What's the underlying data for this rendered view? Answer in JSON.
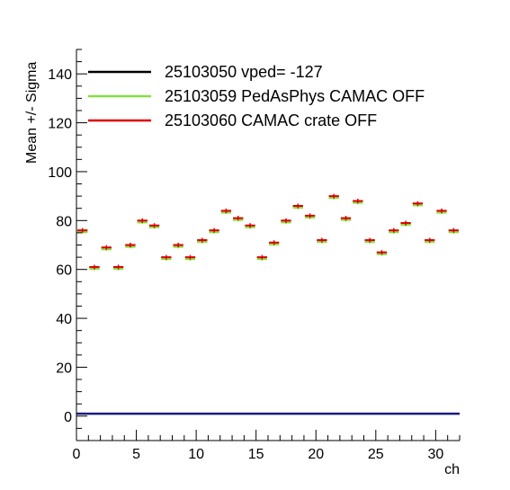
{
  "chart_data": {
    "type": "scatter",
    "xlabel": "ch",
    "ylabel": "Mean +/- Sigma",
    "xlim": [
      0,
      32
    ],
    "ylim": [
      -10,
      150
    ],
    "x_ticks": [
      0,
      5,
      10,
      15,
      20,
      25,
      30
    ],
    "y_ticks": [
      0,
      20,
      40,
      60,
      80,
      100,
      120,
      140
    ],
    "legend_position": "top-left",
    "grid": false,
    "series": [
      {
        "name": "25103050 vped= -127",
        "color": "#000000",
        "x": [
          0.5,
          1.5,
          2.5,
          3.5,
          4.5,
          5.5,
          6.5,
          7.5,
          8.5,
          9.5,
          10.5,
          11.5,
          12.5,
          13.5,
          14.5,
          15.5,
          16.5,
          17.5,
          18.5,
          19.5,
          20.5,
          21.5,
          22.5,
          23.5,
          24.5,
          25.5,
          26.5,
          27.5,
          28.5,
          29.5,
          30.5,
          31.5
        ],
        "values": [
          1,
          1,
          1,
          1,
          1,
          1,
          1,
          1,
          1,
          1,
          1,
          1,
          1,
          1,
          1,
          1,
          1,
          1,
          1,
          1,
          1,
          1,
          1,
          1,
          1,
          1,
          1,
          1,
          1,
          1,
          1,
          1
        ]
      },
      {
        "name": "25103059 PedAsPhys CAMAC OFF",
        "color": "#88dd44",
        "x": [
          0.5,
          1.5,
          2.5,
          3.5,
          4.5,
          5.5,
          6.5,
          7.5,
          8.5,
          9.5,
          10.5,
          11.5,
          12.5,
          13.5,
          14.5,
          15.5,
          16.5,
          17.5,
          18.5,
          19.5,
          20.5,
          21.5,
          22.5,
          23.5,
          24.5,
          25.5,
          26.5,
          27.5,
          28.5,
          29.5,
          30.5,
          31.5
        ],
        "values": [
          75.5,
          60.5,
          68.5,
          60.5,
          69.5,
          79.5,
          77.5,
          64.5,
          69.5,
          64.5,
          71.5,
          75.5,
          83.5,
          80.5,
          77.5,
          64.5,
          70.5,
          79.5,
          85.5,
          81.5,
          71.5,
          89.5,
          80.5,
          87.5,
          71.5,
          66.5,
          75.5,
          78.5,
          86.5,
          71.5,
          83.5,
          75.5
        ]
      },
      {
        "name": "25103060 CAMAC crate OFF",
        "color": "#dd0000",
        "x": [
          0.5,
          1.5,
          2.5,
          3.5,
          4.5,
          5.5,
          6.5,
          7.5,
          8.5,
          9.5,
          10.5,
          11.5,
          12.5,
          13.5,
          14.5,
          15.5,
          16.5,
          17.5,
          18.5,
          19.5,
          20.5,
          21.5,
          22.5,
          23.5,
          24.5,
          25.5,
          26.5,
          27.5,
          28.5,
          29.5,
          30.5,
          31.5
        ],
        "values": [
          76,
          61,
          69,
          61,
          70,
          80,
          78,
          65,
          70,
          65,
          72,
          76,
          84,
          81,
          78,
          65,
          71,
          80,
          86,
          82,
          72,
          90,
          81,
          88,
          72,
          67,
          76,
          79,
          87,
          72,
          84,
          76
        ]
      }
    ],
    "legend": [
      {
        "label": "25103050 vped= -127",
        "color": "#000000"
      },
      {
        "label": "25103059 PedAsPhys CAMAC OFF",
        "color": "#88dd44"
      },
      {
        "label": "25103060 CAMAC crate OFF",
        "color": "#dd0000"
      }
    ]
  }
}
